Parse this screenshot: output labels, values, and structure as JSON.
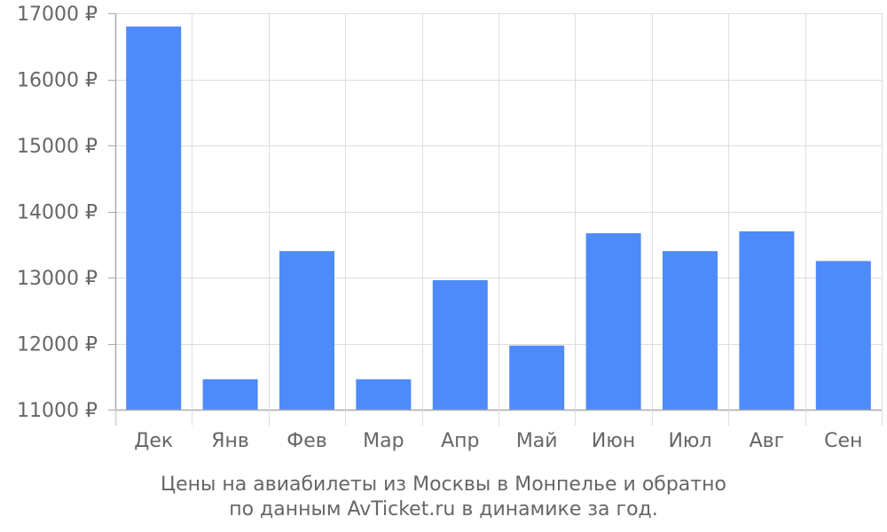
{
  "colors": {
    "bar": "#4e8af9",
    "grid": "#dddddd",
    "axis": "#aaaaaa",
    "text": "#666666"
  },
  "caption": {
    "line1": "Цены на авиабилеты из Москвы в Монпелье и обратно",
    "line2": "по данным AvTicket.ru в динамике за год."
  },
  "chart_data": {
    "type": "bar",
    "categories": [
      "Дек",
      "Янв",
      "Фев",
      "Мар",
      "Апр",
      "Май",
      "Июн",
      "Июл",
      "Авг",
      "Сен"
    ],
    "values": [
      16800,
      11460,
      13400,
      11460,
      12960,
      11970,
      13670,
      13400,
      13700,
      13250
    ],
    "ylim": [
      11000,
      17000
    ],
    "yticks": [
      11000,
      12000,
      13000,
      14000,
      15000,
      16000,
      17000
    ],
    "ytick_labels": [
      "11000 ₽",
      "12000 ₽",
      "13000 ₽",
      "14000 ₽",
      "15000 ₽",
      "16000 ₽",
      "17000 ₽"
    ],
    "grid": true,
    "legend": "none"
  }
}
